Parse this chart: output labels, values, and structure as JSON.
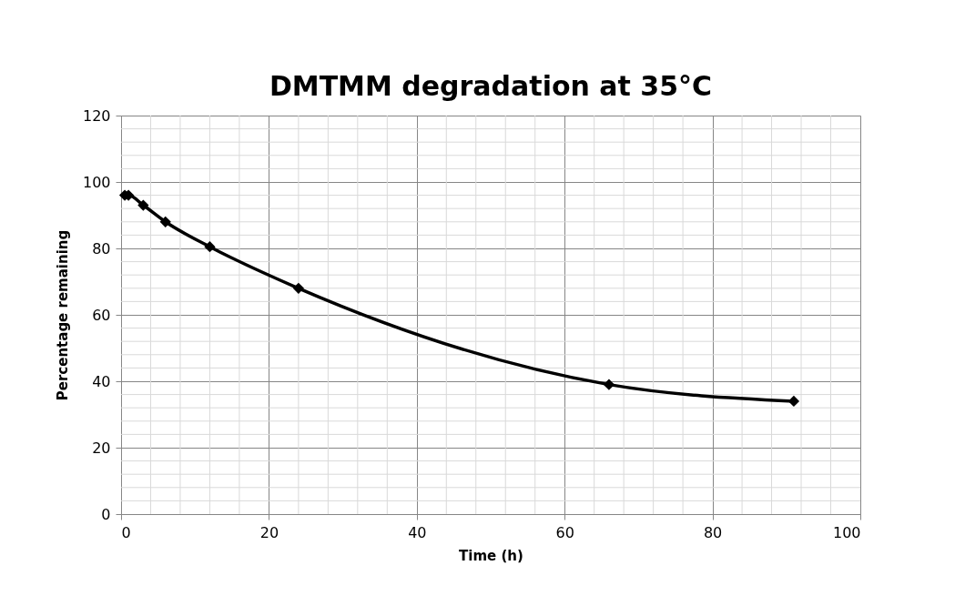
{
  "chart_data": {
    "type": "line",
    "title": "DMTMM degradation at 35°C",
    "xlabel": "Time (h)",
    "ylabel": "Percentage remaining",
    "x": [
      0.5,
      1,
      3,
      6,
      12,
      24,
      66,
      91
    ],
    "series": [
      {
        "color": "#000000",
        "values": [
          96,
          96,
          93,
          88,
          80.5,
          68,
          39,
          34
        ]
      }
    ],
    "xlim": [
      0,
      100
    ],
    "xticks": [
      0,
      20,
      40,
      60,
      80,
      100
    ],
    "ylim": [
      0,
      120
    ],
    "yticks": [
      0,
      20,
      40,
      60,
      80,
      100,
      120
    ],
    "grid": true,
    "marker": "diamond",
    "line_style": "solid"
  }
}
